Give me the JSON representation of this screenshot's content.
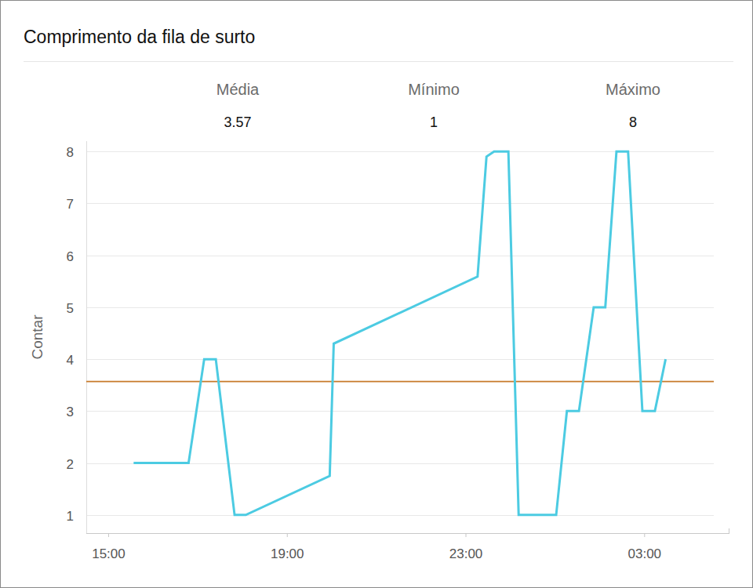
{
  "chart_data": {
    "type": "line",
    "title": "Comprimento da fila de surto",
    "y_label": "Contar",
    "stats": [
      {
        "label": "Média",
        "value": 3.57,
        "color": "#c77a2a"
      },
      {
        "label": "Mínimo",
        "value": 1
      },
      {
        "label": "Máximo",
        "value": 8
      }
    ],
    "x": [
      15.56,
      16.79,
      17.14,
      17.4,
      17.82,
      18.07,
      19.95,
      20.04,
      23.26,
      23.46,
      23.63,
      23.95,
      24.18,
      25.02,
      25.26,
      25.53,
      25.86,
      26.12,
      26.37,
      26.63,
      26.95,
      27.23,
      27.47
    ],
    "values": [
      2,
      2,
      4,
      4,
      1,
      1,
      1.75,
      4.3,
      5.59,
      7.9,
      8,
      8,
      1,
      1,
      3,
      3,
      5,
      5,
      8,
      8,
      3,
      3,
      4
    ],
    "color": "#4ccbe2",
    "xlim": [
      14.5,
      28.9
    ],
    "xticks": [
      {
        "value": 15,
        "label": "15:00"
      },
      {
        "value": 19,
        "label": "19:00"
      },
      {
        "value": 23,
        "label": "23:00"
      },
      {
        "value": 27,
        "label": "03:00"
      }
    ],
    "ylim": [
      0.65,
      8.2
    ],
    "yticks": [
      1,
      2,
      3,
      4,
      5,
      6,
      7,
      8
    ],
    "grid": true
  }
}
